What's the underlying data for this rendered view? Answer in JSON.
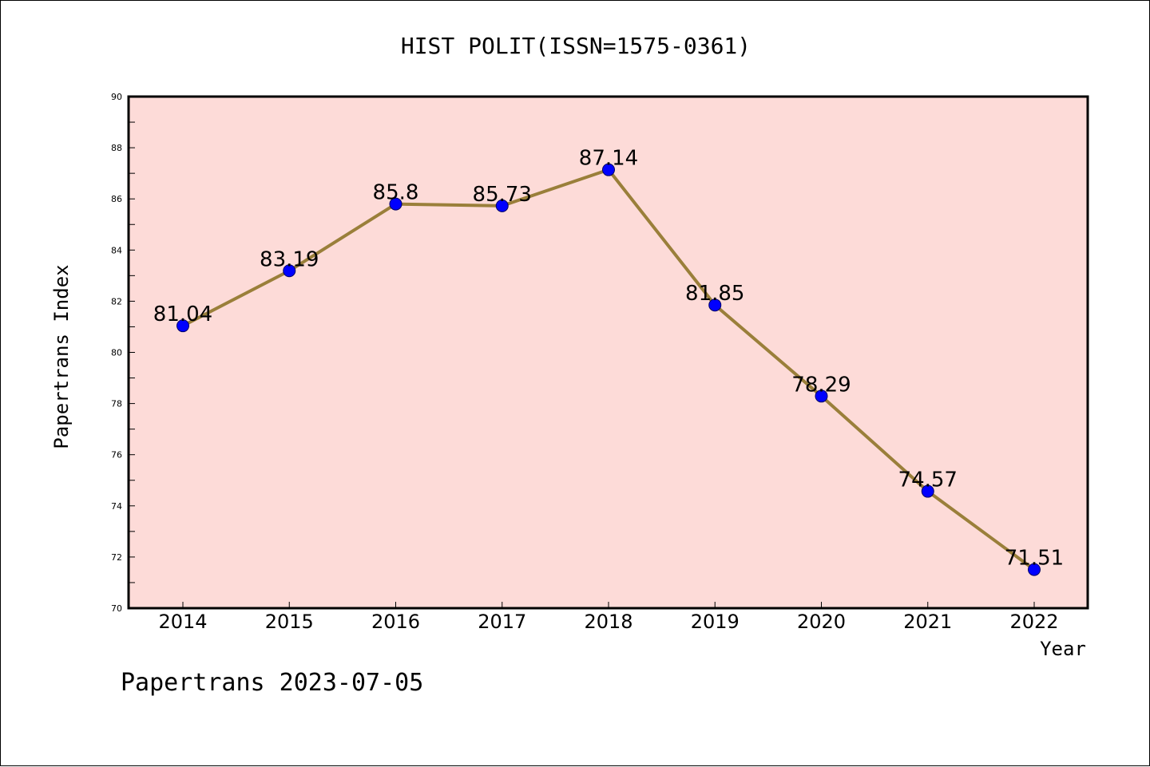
{
  "chart_data": {
    "type": "line",
    "title": "HIST POLIT(ISSN=1575-0361)",
    "xlabel": "Year",
    "ylabel": "Papertrans Index",
    "footer": "Papertrans 2023-07-05",
    "x": [
      "2014",
      "2015",
      "2016",
      "2017",
      "2018",
      "2019",
      "2020",
      "2021",
      "2022"
    ],
    "series": [
      {
        "values": [
          81.04,
          83.19,
          85.8,
          85.73,
          87.14,
          81.85,
          78.29,
          74.57,
          71.51
        ],
        "labels": [
          "81.04",
          "83.19",
          "85.8",
          "85.73",
          "87.14",
          "81.85",
          "78.29",
          "74.57",
          "71.51"
        ]
      }
    ],
    "ylim": [
      70,
      90
    ],
    "yticks": [
      "70",
      "72",
      "74",
      "76",
      "78",
      "80",
      "82",
      "84",
      "86",
      "88",
      "90"
    ],
    "grid": false,
    "colors": {
      "plot_background": "#FDDBD8",
      "line": "#9A7F3A",
      "marker": "#0000FF",
      "axis": "#000000"
    }
  }
}
